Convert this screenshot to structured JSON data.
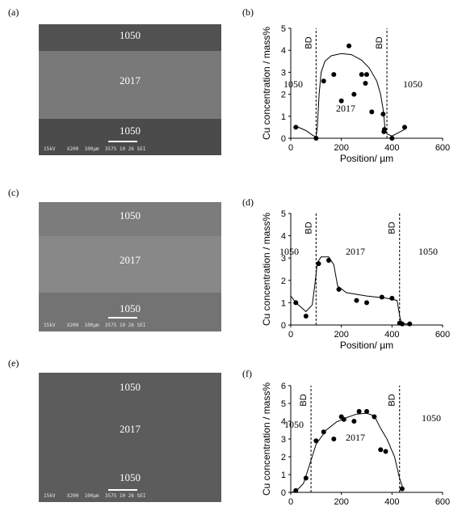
{
  "panels": {
    "a": {
      "label": "(a)"
    },
    "b": {
      "label": "(b)"
    },
    "c": {
      "label": "(c)"
    },
    "d": {
      "label": "(d)"
    },
    "e": {
      "label": "(e)"
    },
    "f": {
      "label": "(f)"
    }
  },
  "sem": [
    {
      "top_label": "1050",
      "mid_label": "2017",
      "bot_label": "1050",
      "info": "15kV    X200  100µm  3575 10 26 SEI"
    },
    {
      "top_label": "1050",
      "mid_label": "2017",
      "bot_label": "1050",
      "info": "15kV    X200  100µm  3575 10 26 SEI"
    },
    {
      "top_label": "1050",
      "mid_label": "2017",
      "bot_label": "1050",
      "info": "15kV    X200  100µm  3575 10 26 SEI"
    }
  ],
  "chart_data": [
    {
      "type": "scatter",
      "xlabel": "Position/ µm",
      "ylabel": "Cu concentration / mass%",
      "xlim": [
        0,
        600
      ],
      "ylim": [
        0,
        5
      ],
      "xticks": [
        "0",
        "200",
        "400",
        "600"
      ],
      "yticks": [
        "0",
        "1",
        "2",
        "3",
        "4",
        "5"
      ],
      "bd_lines": [
        100,
        380
      ],
      "bd_label": "BD",
      "region_labels": {
        "left": "1050",
        "mid": "2017",
        "right": "1050"
      },
      "points": [
        [
          20,
          0.5
        ],
        [
          100,
          0
        ],
        [
          130,
          2.6
        ],
        [
          170,
          2.9
        ],
        [
          200,
          1.7
        ],
        [
          230,
          4.2
        ],
        [
          250,
          2.0
        ],
        [
          280,
          2.9
        ],
        [
          295,
          2.5
        ],
        [
          300,
          2.9
        ],
        [
          320,
          1.2
        ],
        [
          365,
          1.1
        ],
        [
          368,
          0.3
        ],
        [
          370,
          0.4
        ],
        [
          400,
          0.0
        ],
        [
          450,
          0.5
        ]
      ],
      "fit": [
        [
          20,
          0.55
        ],
        [
          60,
          0.35
        ],
        [
          85,
          0.15
        ],
        [
          100,
          0.05
        ],
        [
          105,
          0.5
        ],
        [
          112,
          2.0
        ],
        [
          120,
          3.0
        ],
        [
          135,
          3.5
        ],
        [
          160,
          3.75
        ],
        [
          200,
          3.85
        ],
        [
          240,
          3.8
        ],
        [
          280,
          3.55
        ],
        [
          310,
          3.2
        ],
        [
          340,
          2.6
        ],
        [
          355,
          2.0
        ],
        [
          365,
          1.3
        ],
        [
          372,
          0.5
        ],
        [
          380,
          0.2
        ],
        [
          400,
          0.1
        ],
        [
          450,
          0.4
        ]
      ]
    },
    {
      "type": "scatter",
      "xlabel": "Position/ µm",
      "ylabel": "Cu concentration / mass%",
      "xlim": [
        0,
        600
      ],
      "ylim": [
        0,
        5
      ],
      "xticks": [
        "0",
        "200",
        "400",
        "600"
      ],
      "yticks": [
        "0",
        "1",
        "2",
        "3",
        "4",
        "5"
      ],
      "bd_lines": [
        100,
        430
      ],
      "bd_label": "BD",
      "region_labels": {
        "left": "1050",
        "mid": "2017",
        "right": "1050"
      },
      "points": [
        [
          20,
          1.0
        ],
        [
          60,
          0.4
        ],
        [
          110,
          2.75
        ],
        [
          150,
          2.9
        ],
        [
          190,
          1.6
        ],
        [
          260,
          1.1
        ],
        [
          300,
          1.0
        ],
        [
          360,
          1.25
        ],
        [
          400,
          1.2
        ],
        [
          430,
          0.08
        ],
        [
          440,
          0.05
        ],
        [
          470,
          0.05
        ]
      ],
      "fit": [
        [
          0,
          1.3
        ],
        [
          20,
          1.0
        ],
        [
          60,
          0.6
        ],
        [
          85,
          0.9
        ],
        [
          95,
          1.8
        ],
        [
          105,
          2.8
        ],
        [
          120,
          3.05
        ],
        [
          150,
          3.05
        ],
        [
          170,
          2.7
        ],
        [
          185,
          1.75
        ],
        [
          220,
          1.45
        ],
        [
          300,
          1.3
        ],
        [
          380,
          1.2
        ],
        [
          420,
          1.1
        ],
        [
          432,
          0.3
        ],
        [
          440,
          0.05
        ],
        [
          470,
          0.05
        ]
      ]
    },
    {
      "type": "scatter",
      "xlabel": "",
      "ylabel": "Cu concentration / mass%",
      "xlim": [
        0,
        600
      ],
      "ylim": [
        0,
        6
      ],
      "xticks": [
        "0",
        "200",
        "400",
        "600"
      ],
      "yticks": [
        "0",
        "1",
        "2",
        "3",
        "4",
        "5",
        "6"
      ],
      "bd_lines": [
        80,
        430
      ],
      "bd_label": "BD",
      "region_labels": {
        "left": "1050",
        "mid": "2017",
        "right": "1050"
      },
      "points": [
        [
          20,
          0.1
        ],
        [
          60,
          0.8
        ],
        [
          100,
          2.9
        ],
        [
          130,
          3.4
        ],
        [
          170,
          3.0
        ],
        [
          200,
          4.25
        ],
        [
          210,
          4.1
        ],
        [
          250,
          4.0
        ],
        [
          270,
          4.55
        ],
        [
          300,
          4.55
        ],
        [
          330,
          4.25
        ],
        [
          355,
          2.4
        ],
        [
          375,
          2.3
        ],
        [
          440,
          0.2
        ]
      ],
      "fit": [
        [
          0,
          0.0
        ],
        [
          20,
          0.05
        ],
        [
          50,
          0.5
        ],
        [
          80,
          1.8
        ],
        [
          100,
          2.7
        ],
        [
          140,
          3.5
        ],
        [
          180,
          3.95
        ],
        [
          220,
          4.2
        ],
        [
          260,
          4.4
        ],
        [
          300,
          4.45
        ],
        [
          330,
          4.3
        ],
        [
          355,
          3.6
        ],
        [
          380,
          3.0
        ],
        [
          410,
          2.0
        ],
        [
          430,
          0.8
        ],
        [
          445,
          0.15
        ]
      ]
    }
  ]
}
